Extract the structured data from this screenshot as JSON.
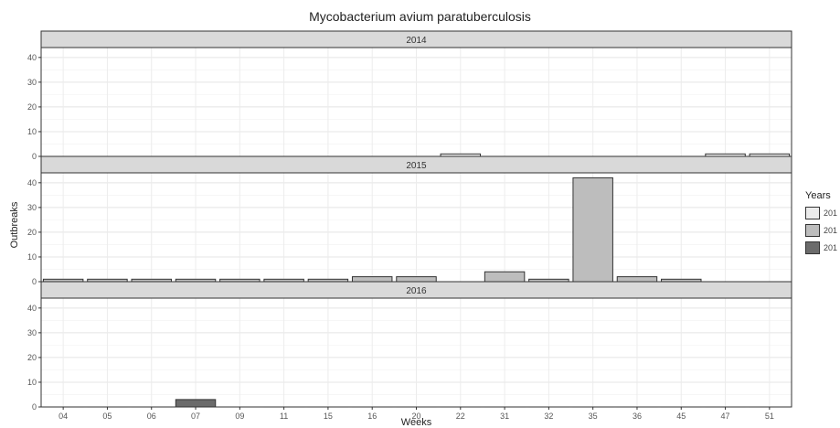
{
  "chart_data": {
    "type": "bar",
    "title": "Mycobacterium avium paratuberculosis",
    "xlabel": "Weeks",
    "ylabel": "Outbreaks",
    "ylim": [
      0,
      44
    ],
    "yticks": [
      0,
      10,
      20,
      30,
      40
    ],
    "grid": true,
    "categories": [
      "04",
      "05",
      "06",
      "07",
      "09",
      "11",
      "15",
      "16",
      "20",
      "22",
      "31",
      "32",
      "35",
      "36",
      "45",
      "47",
      "51"
    ],
    "legend": {
      "title": "Years",
      "position": "right",
      "items": [
        {
          "label": "201",
          "color": "#ebebeb"
        },
        {
          "label": "201",
          "color": "#bdbdbd"
        },
        {
          "label": "201",
          "color": "#6b6b6b"
        }
      ]
    },
    "panels": [
      {
        "name": "2014",
        "color": "#ebebeb",
        "values": [
          0,
          0,
          0,
          0,
          0,
          0,
          0,
          0,
          0,
          1,
          0,
          0,
          0,
          0,
          0,
          1,
          1
        ]
      },
      {
        "name": "2015",
        "color": "#bdbdbd",
        "values": [
          1,
          1,
          1,
          1,
          1,
          1,
          1,
          2,
          2,
          0,
          4,
          1,
          42,
          2,
          1,
          0,
          0
        ]
      },
      {
        "name": "2016",
        "color": "#6b6b6b",
        "values": [
          0,
          0,
          0,
          3,
          0,
          0,
          0,
          0,
          0,
          0,
          0,
          0,
          0,
          0,
          0,
          0,
          0
        ]
      }
    ]
  }
}
